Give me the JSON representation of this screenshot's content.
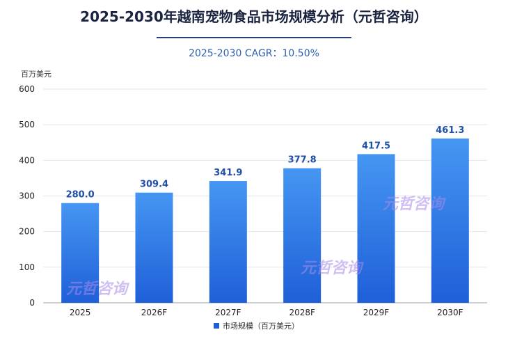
{
  "title": "2025-2030年越南宠物食品市场规模分析（元哲咨询）",
  "subtitle": "2025-2030 CAGR：10.50%",
  "watermark": "元哲咨询",
  "colors": {
    "bar_top": "#4596f2",
    "bar_bottom": "#1f5fd8",
    "value_label": "#1f4fa8",
    "grid": "#e2e6ec"
  },
  "chart_data": {
    "type": "bar",
    "title": "2025-2030年越南宠物食品市场规模分析（元哲咨询）",
    "ylabel": "百万美元",
    "xlabel": "",
    "ylim": [
      0,
      600
    ],
    "yticks": [
      0,
      100,
      200,
      300,
      400,
      500,
      600
    ],
    "grid": true,
    "legend_position": "bottom",
    "categories": [
      "2025",
      "2026F",
      "2027F",
      "2028F",
      "2029F",
      "2030F"
    ],
    "series": [
      {
        "name": "市场规模（百万美元）",
        "values": [
          280.0,
          309.4,
          341.9,
          377.8,
          417.5,
          461.3
        ],
        "labels": [
          "280.0",
          "309.4",
          "341.9",
          "377.8",
          "417.5",
          "461.3"
        ]
      }
    ]
  }
}
